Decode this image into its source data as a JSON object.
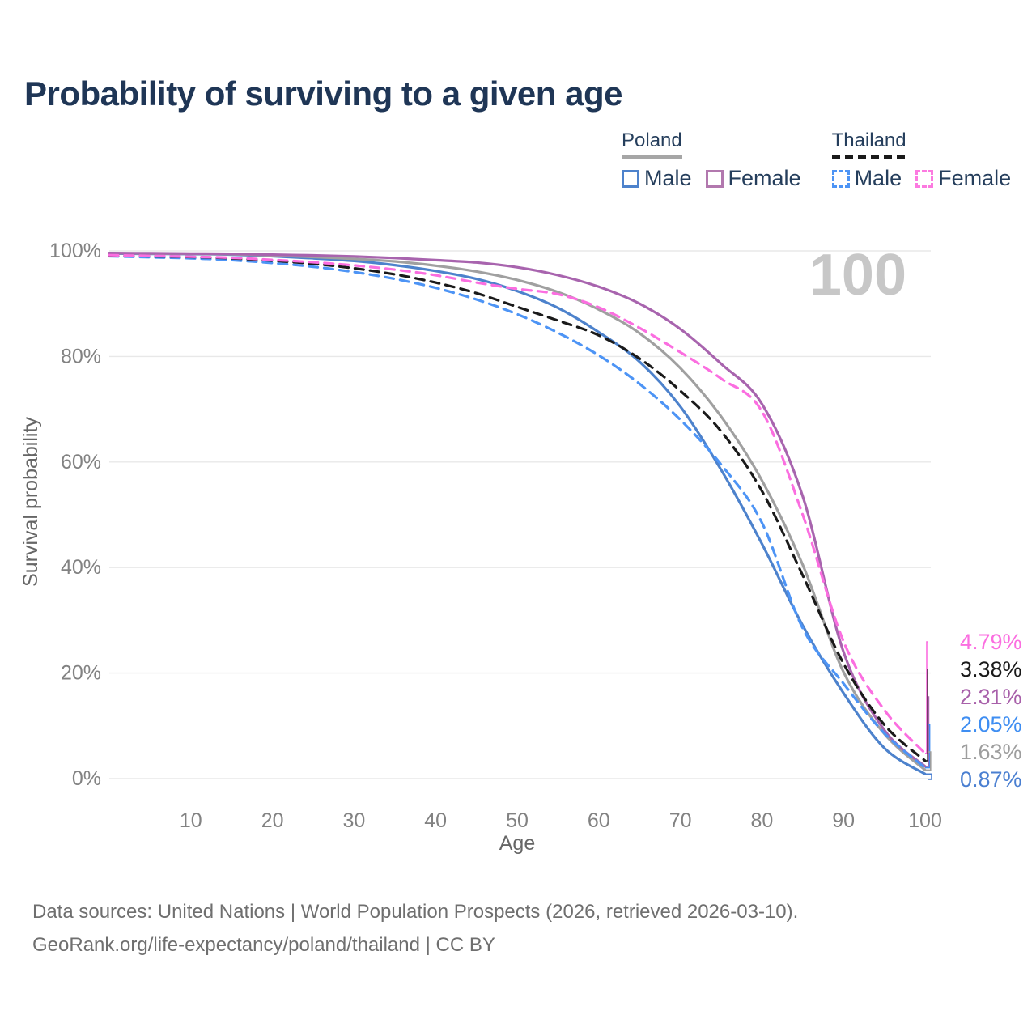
{
  "page": {
    "title": "Probability of surviving to a given age",
    "watermark_age": "100",
    "footer_line1": "Data sources: United Nations | World Population Prospects (2026, retrieved 2026-03-10).",
    "footer_line2": "GeoRank.org/life-expectancy/poland/thailand | CC BY"
  },
  "legend": {
    "groups": [
      {
        "id": "poland",
        "label": "Poland",
        "line_style": "solid",
        "line_color": "#a6a6a6",
        "items": [
          {
            "id": "poland-male",
            "label": "Male",
            "color": "#4d82cc",
            "dashed": false
          },
          {
            "id": "poland-female",
            "label": "Female",
            "color": "#b278ae",
            "dashed": false
          }
        ]
      },
      {
        "id": "thailand",
        "label": "Thailand",
        "line_style": "dashed",
        "line_color": "#1a1a1a",
        "items": [
          {
            "id": "thailand-male",
            "label": "Male",
            "color": "#4d94f5",
            "dashed": true
          },
          {
            "id": "thailand-female",
            "label": "Female",
            "color": "#fc7ae0",
            "dashed": true
          }
        ]
      }
    ]
  },
  "chart_data": {
    "type": "line",
    "title": "Probability of surviving to a given age",
    "xlabel": "Age",
    "ylabel": "Survival probability",
    "xlim": [
      0,
      100
    ],
    "ylim": [
      0,
      100
    ],
    "grid": "horizontal",
    "x_ticks": [
      10,
      20,
      30,
      40,
      50,
      60,
      70,
      80,
      90,
      100
    ],
    "y_tick_values": [
      0,
      20,
      40,
      60,
      80,
      100
    ],
    "y_tick_labels": [
      "0%",
      "20%",
      "40%",
      "60%",
      "80%",
      "100%"
    ],
    "hover_age": 100,
    "x": [
      0,
      5,
      10,
      15,
      20,
      25,
      30,
      35,
      40,
      45,
      50,
      55,
      60,
      65,
      70,
      75,
      80,
      85,
      90,
      95,
      100
    ],
    "series": [
      {
        "id": "poland_male",
        "name": "Poland Male",
        "country": "poland",
        "color": "#4d82cc",
        "dashed": false,
        "tail_label": "0.87%",
        "label_color": "#4a7fd1",
        "values": [
          99.5,
          99.45,
          99.4,
          99.3,
          99.0,
          98.6,
          98.1,
          97.3,
          96.2,
          94.7,
          92.4,
          89.2,
          84.6,
          79.0,
          70.5,
          58.5,
          44.5,
          29.0,
          16.2,
          5.8,
          0.87
        ]
      },
      {
        "id": "poland",
        "name": "Poland",
        "country": "poland",
        "color": "#a0a0a0",
        "dashed": false,
        "tail_label": "1.63%",
        "label_color": "#9e9e9e",
        "values": [
          99.55,
          99.5,
          99.45,
          99.35,
          99.15,
          98.85,
          98.5,
          98.0,
          97.2,
          96.1,
          94.5,
          92.2,
          88.9,
          84.4,
          77.8,
          68.6,
          56.5,
          40.5,
          20.2,
          8.5,
          1.63
        ]
      },
      {
        "id": "poland_female",
        "name": "Poland Female",
        "country": "poland",
        "color": "#a864ae",
        "dashed": false,
        "tail_label": "2.31%",
        "label_color": "#a860aa",
        "values": [
          99.6,
          99.55,
          99.5,
          99.45,
          99.3,
          99.15,
          98.95,
          98.65,
          98.25,
          97.8,
          96.9,
          95.4,
          93.2,
          90.0,
          85.2,
          78.6,
          71.0,
          53.5,
          24.0,
          9.2,
          2.31
        ]
      },
      {
        "id": "thailand_male",
        "name": "Thailand Male",
        "country": "thailand",
        "color": "#4d94f5",
        "dashed": true,
        "tail_label": "2.05%",
        "label_color": "#3f8ef2",
        "values": [
          99.0,
          98.8,
          98.6,
          98.25,
          97.7,
          97.0,
          96.0,
          94.7,
          93.0,
          90.8,
          88.0,
          84.5,
          80.2,
          74.8,
          68.0,
          59.5,
          48.5,
          28.5,
          18.0,
          8.6,
          2.05
        ]
      },
      {
        "id": "thailand",
        "name": "Thailand",
        "country": "thailand",
        "color": "#1a1a1a",
        "dashed": true,
        "tail_label": "3.38%",
        "label_color": "#1a1a1a",
        "values": [
          99.15,
          99.0,
          98.85,
          98.6,
          98.15,
          97.55,
          96.7,
          95.55,
          94.0,
          92.0,
          89.4,
          86.8,
          84.0,
          79.6,
          73.5,
          65.8,
          54.5,
          38.5,
          21.8,
          10.2,
          3.38
        ]
      },
      {
        "id": "thailand_female",
        "name": "Thailand Female",
        "country": "thailand",
        "color": "#fb6ee0",
        "dashed": true,
        "tail_label": "4.79%",
        "label_color": "#fb6ee0",
        "values": [
          99.2,
          99.05,
          98.9,
          98.7,
          98.3,
          97.85,
          97.25,
          96.45,
          95.4,
          94.0,
          92.8,
          91.8,
          89.3,
          85.4,
          80.8,
          75.8,
          69.6,
          50.0,
          26.0,
          13.0,
          4.79
        ]
      }
    ],
    "flag_colors": {
      "red": "#d4113a",
      "white": "#ececec",
      "thai_blue": "#2e3f96"
    }
  }
}
